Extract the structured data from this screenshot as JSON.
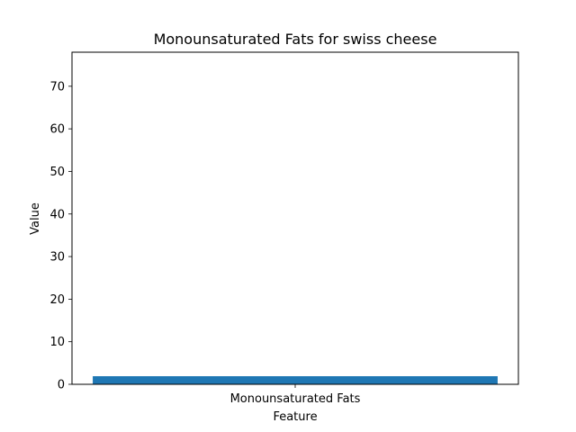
{
  "chart_data": {
    "type": "bar",
    "title": "Monounsaturated Fats for swiss cheese",
    "xlabel": "Feature",
    "ylabel": "Value",
    "categories": [
      "Monounsaturated Fats"
    ],
    "values": [
      1.9
    ],
    "ylim": [
      0,
      78
    ],
    "yticks": [
      0,
      10,
      20,
      30,
      40,
      50,
      60,
      70
    ],
    "grid": false,
    "bar_color": "#1f77b4"
  }
}
